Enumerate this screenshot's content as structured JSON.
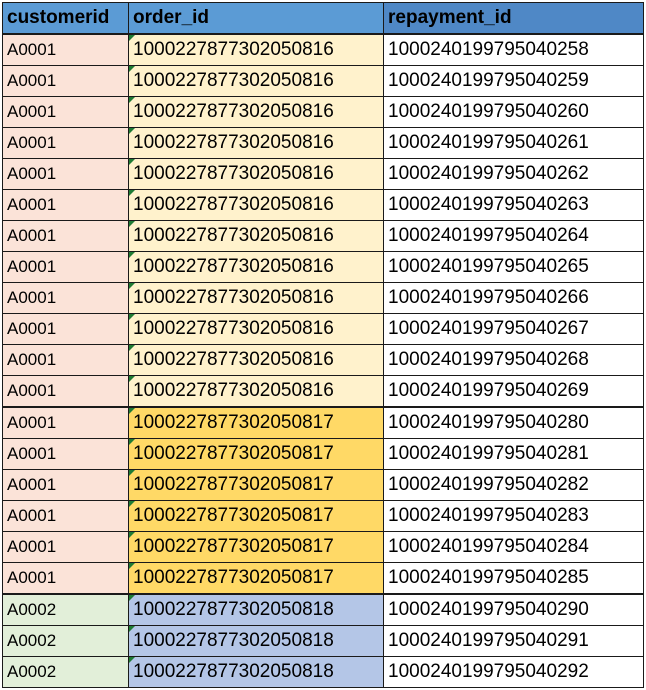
{
  "colors": {
    "header_bg": "#5b9bd5",
    "header_bg_repayment": "#4f88c6",
    "a0001_customer_bg": "#fbe3d8",
    "a0002_customer_bg": "#e2efd9",
    "order_816_bg": "#fff2cc",
    "order_817_bg": "#ffd966",
    "order_818_bg": "#b4c6e7",
    "repayment_bg": "#ffffff",
    "error_triangle": "#1e7b34"
  },
  "headers": [
    "customerid",
    "order_id",
    "repayment_id"
  ],
  "rows": [
    {
      "customerid": "A0001",
      "order_id": "1000227877302050816",
      "repayment_id": "1000240199795040258",
      "group": "816"
    },
    {
      "customerid": "A0001",
      "order_id": "1000227877302050816",
      "repayment_id": "1000240199795040259",
      "group": "816"
    },
    {
      "customerid": "A0001",
      "order_id": "1000227877302050816",
      "repayment_id": "1000240199795040260",
      "group": "816"
    },
    {
      "customerid": "A0001",
      "order_id": "1000227877302050816",
      "repayment_id": "1000240199795040261",
      "group": "816"
    },
    {
      "customerid": "A0001",
      "order_id": "1000227877302050816",
      "repayment_id": "1000240199795040262",
      "group": "816"
    },
    {
      "customerid": "A0001",
      "order_id": "1000227877302050816",
      "repayment_id": "1000240199795040263",
      "group": "816"
    },
    {
      "customerid": "A0001",
      "order_id": "1000227877302050816",
      "repayment_id": "1000240199795040264",
      "group": "816"
    },
    {
      "customerid": "A0001",
      "order_id": "1000227877302050816",
      "repayment_id": "1000240199795040265",
      "group": "816"
    },
    {
      "customerid": "A0001",
      "order_id": "1000227877302050816",
      "repayment_id": "1000240199795040266",
      "group": "816"
    },
    {
      "customerid": "A0001",
      "order_id": "1000227877302050816",
      "repayment_id": "1000240199795040267",
      "group": "816"
    },
    {
      "customerid": "A0001",
      "order_id": "1000227877302050816",
      "repayment_id": "1000240199795040268",
      "group": "816"
    },
    {
      "customerid": "A0001",
      "order_id": "1000227877302050816",
      "repayment_id": "1000240199795040269",
      "group": "816"
    },
    {
      "customerid": "A0001",
      "order_id": "1000227877302050817",
      "repayment_id": "1000240199795040280",
      "group": "817"
    },
    {
      "customerid": "A0001",
      "order_id": "1000227877302050817",
      "repayment_id": "1000240199795040281",
      "group": "817"
    },
    {
      "customerid": "A0001",
      "order_id": "1000227877302050817",
      "repayment_id": "1000240199795040282",
      "group": "817"
    },
    {
      "customerid": "A0001",
      "order_id": "1000227877302050817",
      "repayment_id": "1000240199795040283",
      "group": "817"
    },
    {
      "customerid": "A0001",
      "order_id": "1000227877302050817",
      "repayment_id": "1000240199795040284",
      "group": "817"
    },
    {
      "customerid": "A0001",
      "order_id": "1000227877302050817",
      "repayment_id": "1000240199795040285",
      "group": "817"
    },
    {
      "customerid": "A0002",
      "order_id": "1000227877302050818",
      "repayment_id": "1000240199795040290",
      "group": "818"
    },
    {
      "customerid": "A0002",
      "order_id": "1000227877302050818",
      "repayment_id": "1000240199795040291",
      "group": "818"
    },
    {
      "customerid": "A0002",
      "order_id": "1000227877302050818",
      "repayment_id": "1000240199795040292",
      "group": "818"
    }
  ]
}
